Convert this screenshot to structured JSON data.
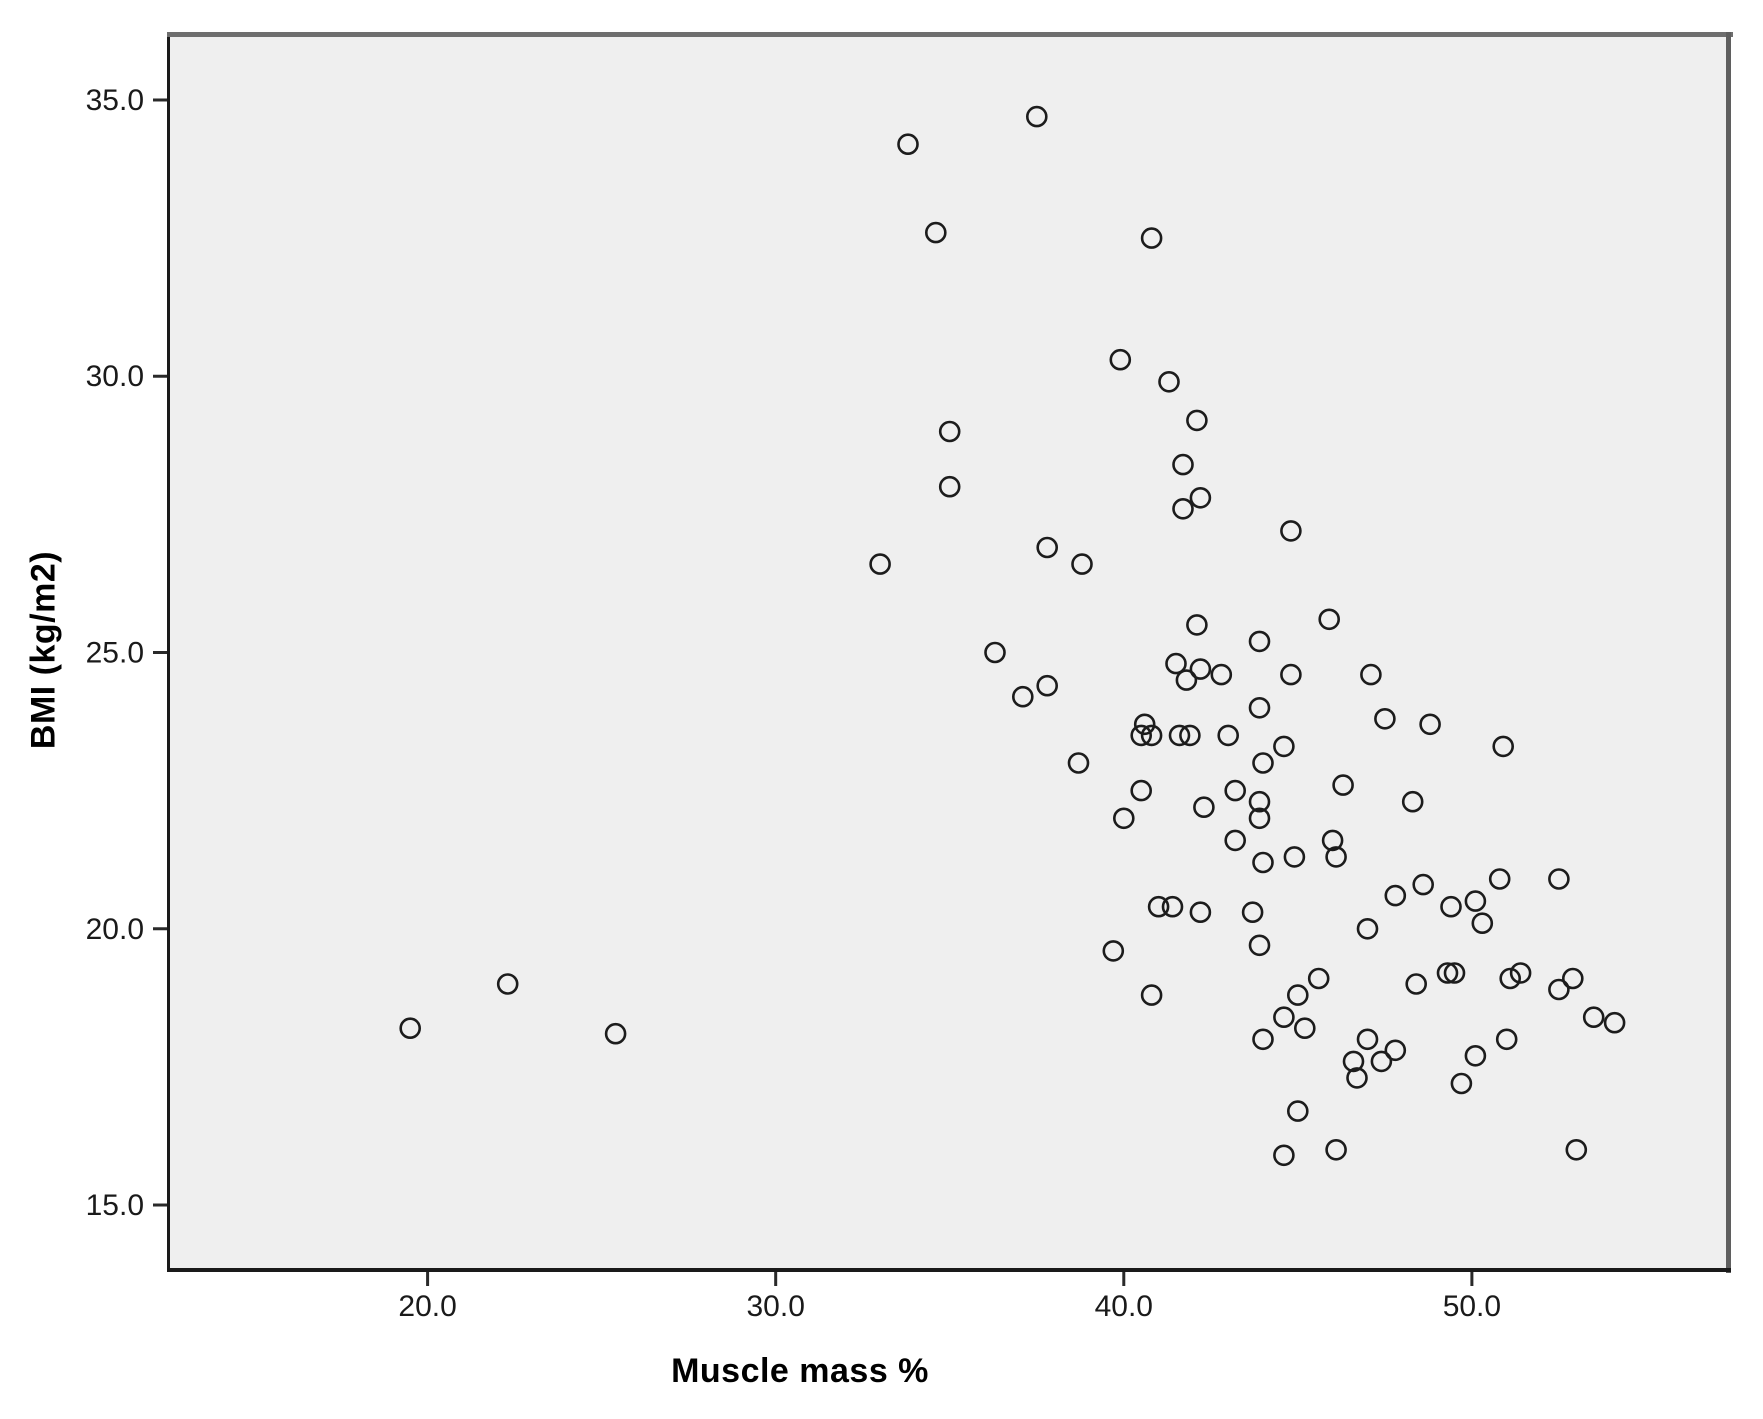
{
  "chart_data": {
    "type": "scatter",
    "title": "",
    "xlabel": "Muscle mass %",
    "ylabel": "BMI (kg/m2)",
    "xlim": [
      12.6,
      57.3
    ],
    "ylim": [
      13.86,
      36.14
    ],
    "x_ticks": [
      20,
      30,
      40,
      50
    ],
    "x_tick_labels": [
      "20.0",
      "30.0",
      "40.0",
      "50.0"
    ],
    "y_ticks": [
      15,
      20,
      25,
      30,
      35
    ],
    "y_tick_labels": [
      "15.0",
      "20.0",
      "25.0",
      "30.0",
      "35.0"
    ],
    "grid": false,
    "legend": null,
    "marker": {
      "shape": "open-circle",
      "radius_px": 9.5,
      "stroke_px": 2.6
    },
    "colors": {
      "marker": "#1c1c1c",
      "plot_bg": "#efefef",
      "page_bg": "#ffffff",
      "tick_label": "#1a1a1a",
      "axis_title": "#000000",
      "frame_dark": "#1a1a1a",
      "frame_gray": "#6e6e6e"
    },
    "points": [
      [
        37.5,
        34.7
      ],
      [
        33.8,
        34.2
      ],
      [
        34.6,
        32.6
      ],
      [
        40.8,
        32.5
      ],
      [
        39.9,
        30.3
      ],
      [
        41.3,
        29.9
      ],
      [
        42.1,
        29.2
      ],
      [
        35.0,
        29.0
      ],
      [
        41.7,
        28.4
      ],
      [
        35.0,
        28.0
      ],
      [
        42.2,
        27.8
      ],
      [
        41.7,
        27.6
      ],
      [
        44.8,
        27.2
      ],
      [
        37.8,
        26.9
      ],
      [
        38.8,
        26.6
      ],
      [
        33.0,
        26.6
      ],
      [
        45.9,
        25.6
      ],
      [
        42.1,
        25.5
      ],
      [
        43.9,
        25.2
      ],
      [
        36.3,
        25.0
      ],
      [
        41.5,
        24.8
      ],
      [
        42.2,
        24.7
      ],
      [
        41.8,
        24.5
      ],
      [
        42.8,
        24.6
      ],
      [
        44.8,
        24.6
      ],
      [
        47.1,
        24.6
      ],
      [
        37.8,
        24.4
      ],
      [
        37.1,
        24.2
      ],
      [
        43.9,
        24.0
      ],
      [
        47.5,
        23.8
      ],
      [
        40.6,
        23.7
      ],
      [
        48.8,
        23.7
      ],
      [
        40.5,
        23.5
      ],
      [
        40.8,
        23.5
      ],
      [
        41.6,
        23.5
      ],
      [
        41.9,
        23.5
      ],
      [
        43.0,
        23.5
      ],
      [
        44.6,
        23.3
      ],
      [
        50.9,
        23.3
      ],
      [
        38.7,
        23.0
      ],
      [
        44.0,
        23.0
      ],
      [
        46.3,
        22.6
      ],
      [
        40.5,
        22.5
      ],
      [
        43.2,
        22.5
      ],
      [
        48.3,
        22.3
      ],
      [
        43.9,
        22.3
      ],
      [
        42.3,
        22.2
      ],
      [
        40.0,
        22.0
      ],
      [
        43.9,
        22.0
      ],
      [
        43.2,
        21.6
      ],
      [
        46.0,
        21.6
      ],
      [
        44.9,
        21.3
      ],
      [
        46.1,
        21.3
      ],
      [
        44.0,
        21.2
      ],
      [
        50.8,
        20.9
      ],
      [
        52.5,
        20.9
      ],
      [
        48.6,
        20.8
      ],
      [
        47.8,
        20.6
      ],
      [
        50.1,
        20.5
      ],
      [
        41.0,
        20.4
      ],
      [
        41.4,
        20.4
      ],
      [
        49.4,
        20.4
      ],
      [
        42.2,
        20.3
      ],
      [
        43.7,
        20.3
      ],
      [
        50.3,
        20.1
      ],
      [
        47.0,
        20.0
      ],
      [
        43.9,
        19.7
      ],
      [
        39.7,
        19.6
      ],
      [
        49.3,
        19.2
      ],
      [
        49.5,
        19.2
      ],
      [
        51.4,
        19.2
      ],
      [
        45.6,
        19.1
      ],
      [
        51.1,
        19.1
      ],
      [
        52.9,
        19.1
      ],
      [
        22.3,
        19.0
      ],
      [
        48.4,
        19.0
      ],
      [
        52.5,
        18.9
      ],
      [
        40.8,
        18.8
      ],
      [
        45.0,
        18.8
      ],
      [
        44.6,
        18.4
      ],
      [
        53.5,
        18.4
      ],
      [
        54.1,
        18.3
      ],
      [
        45.2,
        18.2
      ],
      [
        19.5,
        18.2
      ],
      [
        25.4,
        18.1
      ],
      [
        44.0,
        18.0
      ],
      [
        47.0,
        18.0
      ],
      [
        51.0,
        18.0
      ],
      [
        47.8,
        17.8
      ],
      [
        50.1,
        17.7
      ],
      [
        46.6,
        17.6
      ],
      [
        47.4,
        17.6
      ],
      [
        46.7,
        17.3
      ],
      [
        49.7,
        17.2
      ],
      [
        45.0,
        16.7
      ],
      [
        46.1,
        16.0
      ],
      [
        53.0,
        16.0
      ],
      [
        44.6,
        15.9
      ]
    ]
  }
}
